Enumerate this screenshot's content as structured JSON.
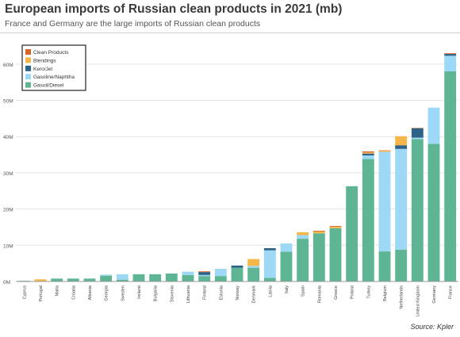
{
  "chart_data": {
    "type": "bar",
    "stacked": true,
    "title": "European imports of Russian clean products in 2021 (mb)",
    "subtitle": "France and Germany are the large imports of Russian clean products",
    "source": "Source: Kpler",
    "xlabel": "",
    "ylabel": "",
    "ylim": [
      0,
      65
    ],
    "yticks": [
      {
        "value": 0,
        "label": "0M"
      },
      {
        "value": 10,
        "label": "10M"
      },
      {
        "value": 20,
        "label": "20M"
      },
      {
        "value": 30,
        "label": "30M"
      },
      {
        "value": 40,
        "label": "40M"
      },
      {
        "value": 50,
        "label": "50M"
      },
      {
        "value": 60,
        "label": "60M"
      }
    ],
    "grid": true,
    "legend_position": "top-left",
    "categories": [
      "Cyprus",
      "Portugal",
      "Malta",
      "Croatia",
      "Albania",
      "Georgia",
      "Sweden",
      "Ireland",
      "Bulgaria",
      "Slovenia",
      "Lithuania",
      "Finland",
      "Estonia",
      "Norway",
      "Denmark",
      "Latvia",
      "Italy",
      "Spain",
      "Romania",
      "Greece",
      "Poland",
      "Turkey",
      "Belgium",
      "Netherlands",
      "United Kingdom",
      "Germany",
      "France"
    ],
    "series": [
      {
        "name": "Gasoil/Diesel",
        "color": "#5db593",
        "values": [
          0.2,
          0,
          0.8,
          0.8,
          0.8,
          1.6,
          0.5,
          2.0,
          2.0,
          2.2,
          1.8,
          1.5,
          1.5,
          3.8,
          3.8,
          1.0,
          8.2,
          11.8,
          13.3,
          14.7,
          26.3,
          33.8,
          8.3,
          8.8,
          39.3,
          38.0,
          58.0
        ]
      },
      {
        "name": "Gasoline/Naphtha",
        "color": "#9dd9f6",
        "values": [
          0,
          0,
          0,
          0,
          0,
          0.3,
          1.5,
          0,
          0,
          0,
          0.9,
          0.3,
          2.0,
          0,
          0.5,
          7.6,
          2.3,
          1.0,
          0,
          0,
          0,
          1.0,
          27.5,
          27.8,
          0.4,
          10.0,
          4.3
        ]
      },
      {
        "name": "Kero/Jet",
        "color": "#2d6389",
        "values": [
          0,
          0,
          0,
          0,
          0,
          0,
          0,
          0,
          0,
          0,
          0,
          0.8,
          0,
          0.6,
          0,
          0.6,
          0,
          0,
          0,
          0,
          0,
          0.5,
          0,
          1.0,
          2.6,
          0,
          0.5
        ]
      },
      {
        "name": "Blendings",
        "color": "#f6b74a",
        "values": [
          0,
          0.6,
          0,
          0,
          0,
          0,
          0,
          0,
          0,
          0,
          0,
          0,
          0,
          0,
          1.9,
          0,
          0,
          0.8,
          0.5,
          0.4,
          0,
          0.3,
          0.3,
          2.5,
          0,
          0,
          0
        ]
      },
      {
        "name": "Clean Products",
        "color": "#d9652b",
        "values": [
          0,
          0,
          0,
          0,
          0,
          0,
          0,
          0,
          0,
          0,
          0,
          0.2,
          0,
          0,
          0,
          0,
          0,
          0,
          0.2,
          0.2,
          0,
          0.3,
          0.1,
          0,
          0.1,
          0,
          0.2
        ]
      }
    ]
  }
}
